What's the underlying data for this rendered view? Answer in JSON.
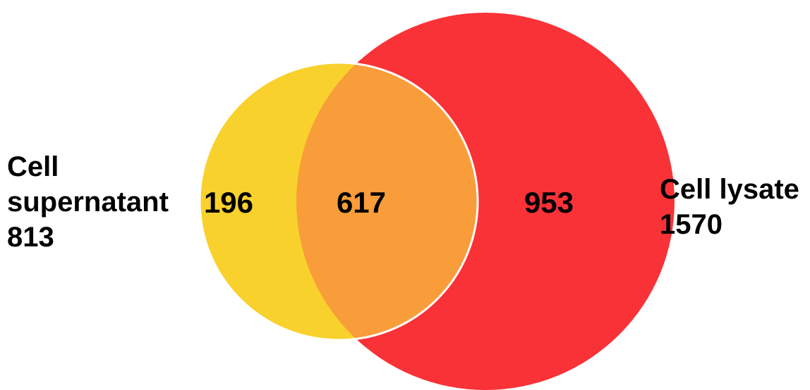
{
  "colors": {
    "supernatant_only": "#F9D12C",
    "lysate_only": "#F93237",
    "overlap": "#F99D3A",
    "outline": "#FFFFFF",
    "text": "#000000"
  },
  "sets": {
    "supernatant": {
      "name_line1": "Cell",
      "name_line2": "supernatant",
      "total": "813"
    },
    "lysate": {
      "name": "Cell lysate",
      "total": "1570"
    }
  },
  "regions": {
    "supernatant_only": "196",
    "overlap": "617",
    "lysate_only": "953"
  }
}
